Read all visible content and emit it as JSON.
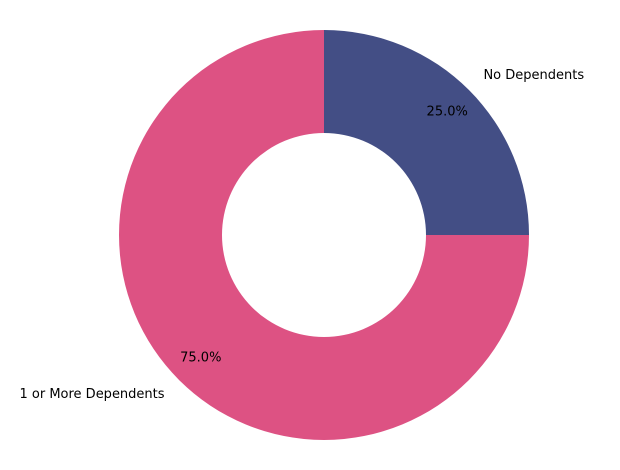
{
  "chart_data": {
    "type": "pie",
    "variant": "donut",
    "categories": [
      "No Dependents",
      "1 or More Dependents"
    ],
    "values": [
      25.0,
      75.0
    ],
    "value_labels": [
      "25.0%",
      "75.0%"
    ],
    "colors": [
      "#434e85",
      "#dd5283"
    ],
    "title": "",
    "legend": "none"
  }
}
